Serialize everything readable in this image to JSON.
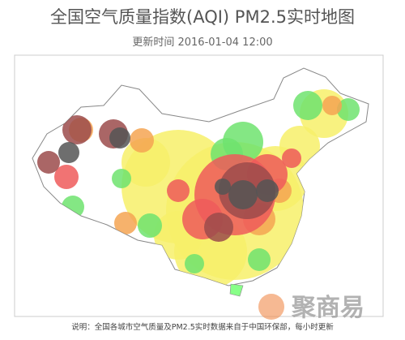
{
  "header": {
    "title": "全国空气质量指数(AQI) PM2.5实时地图",
    "updated": "更新时间 2016-01-04 12:00"
  },
  "footer": {
    "note": "说明：全国各城市空气质量及PM2.5实时数据来自于中国环保部，每小时更新"
  },
  "watermark": {
    "brand": "聚商易"
  }
}
